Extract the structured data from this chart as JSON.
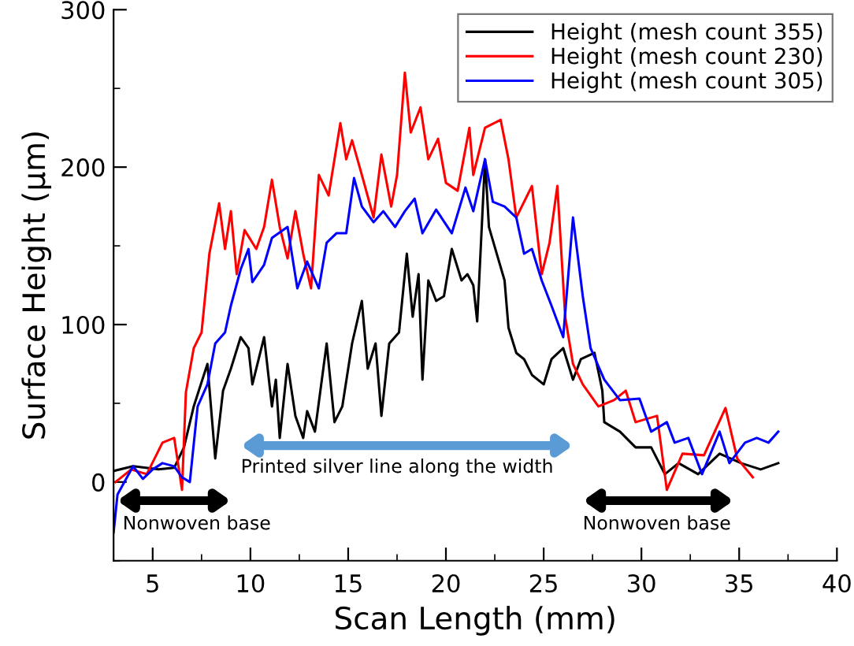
{
  "chart_data": {
    "type": "line",
    "xlabel": "Scan Length (mm)",
    "ylabel": "Surface Height (μm)",
    "xlim": [
      3,
      40
    ],
    "ylim": [
      -50,
      300
    ],
    "xticks": [
      5,
      {
        "value": 7.5,
        "label": null
      },
      10,
      {
        "value": 12.5,
        "label": null
      },
      15,
      {
        "value": 17.5,
        "label": null
      },
      20,
      {
        "value": 22.5,
        "label": null
      },
      25,
      {
        "value": 27.5,
        "label": null
      },
      30,
      {
        "value": 32.5,
        "label": null
      },
      35,
      {
        "value": 37.5,
        "label": null
      },
      40
    ],
    "yticks": [
      {
        "value": -50,
        "label": null
      },
      0,
      {
        "value": 50,
        "label": null
      },
      100,
      {
        "value": 150,
        "label": null
      },
      200,
      {
        "value": 250,
        "label": null
      },
      300
    ],
    "grid": false,
    "legend": "top right",
    "marker": "none",
    "line_style": "solid",
    "series": [
      {
        "name": "Height (mesh count 355)",
        "color": "#000000",
        "x": [
          3.0,
          4.0,
          5.3,
          6.1,
          6.6,
          7.1,
          7.8,
          8.2,
          8.6,
          9.0,
          9.5,
          9.9,
          10.1,
          10.3,
          10.7,
          11.1,
          11.3,
          11.5,
          11.9,
          12.3,
          12.7,
          12.9,
          13.3,
          13.9,
          14.3,
          14.7,
          15.2,
          15.7,
          16.0,
          16.4,
          16.7,
          17.1,
          17.6,
          18.0,
          18.3,
          18.6,
          18.8,
          19.1,
          19.5,
          19.9,
          20.3,
          20.8,
          21.1,
          21.4,
          21.6,
          22.0,
          22.2,
          22.6,
          23.0,
          23.2,
          23.6,
          24.0,
          24.4,
          25.0,
          25.4,
          26.0,
          26.5,
          26.9,
          27.6,
          28.0,
          28.1,
          28.9,
          29.7,
          30.5,
          31.2,
          31.9,
          32.9,
          34.0,
          35.1,
          36.1,
          37.0
        ],
        "values": [
          7,
          10,
          8,
          9,
          22,
          48,
          75,
          15,
          58,
          72,
          92,
          85,
          62,
          72,
          92,
          48,
          65,
          28,
          75,
          42,
          28,
          45,
          32,
          88,
          38,
          48,
          88,
          115,
          72,
          88,
          42,
          88,
          95,
          145,
          105,
          132,
          65,
          128,
          115,
          118,
          148,
          128,
          132,
          125,
          102,
          205,
          162,
          145,
          128,
          98,
          82,
          78,
          68,
          62,
          78,
          85,
          65,
          78,
          82,
          58,
          38,
          32,
          22,
          22,
          5,
          12,
          5,
          18,
          12,
          8,
          12
        ]
      },
      {
        "name": "Height (mesh count 230)",
        "color": "#ff0000",
        "x": [
          3.1,
          3.9,
          4.7,
          5.5,
          6.1,
          6.5,
          6.7,
          7.1,
          7.5,
          7.9,
          8.4,
          8.7,
          9.0,
          9.3,
          9.7,
          10.3,
          10.7,
          11.1,
          11.5,
          11.9,
          12.3,
          12.7,
          13.1,
          13.5,
          14.0,
          14.6,
          14.9,
          15.2,
          15.7,
          16.3,
          16.7,
          17.2,
          17.5,
          17.9,
          18.2,
          18.7,
          19.1,
          19.6,
          20.0,
          20.6,
          21.2,
          21.4,
          22.0,
          22.8,
          23.2,
          23.6,
          24.4,
          24.9,
          25.3,
          25.7,
          26.1,
          26.5,
          27.0,
          27.8,
          28.6,
          29.2,
          29.7,
          30.8,
          31.3,
          32.1,
          33.2,
          34.3,
          34.9,
          35.7
        ],
        "values": [
          0,
          8,
          5,
          25,
          28,
          -5,
          57,
          85,
          95,
          145,
          177,
          148,
          172,
          132,
          160,
          148,
          162,
          192,
          162,
          142,
          172,
          145,
          123,
          195,
          182,
          228,
          205,
          217,
          195,
          168,
          208,
          175,
          195,
          260,
          222,
          238,
          205,
          218,
          190,
          185,
          225,
          195,
          225,
          230,
          205,
          168,
          188,
          132,
          152,
          188,
          105,
          75,
          62,
          48,
          52,
          58,
          38,
          42,
          -5,
          18,
          17,
          47,
          15,
          3
        ]
      },
      {
        "name": "Height (mesh count 305)",
        "color": "#0000ff",
        "x": [
          3.0,
          3.2,
          4.0,
          4.5,
          5.0,
          5.5,
          6.1,
          6.5,
          6.9,
          7.3,
          7.8,
          8.2,
          8.7,
          9.0,
          9.5,
          9.9,
          10.1,
          10.7,
          11.1,
          11.9,
          12.4,
          12.9,
          13.5,
          13.9,
          14.4,
          14.9,
          15.3,
          15.7,
          16.3,
          16.8,
          17.4,
          17.9,
          18.4,
          18.8,
          19.5,
          20.3,
          21.0,
          21.4,
          22.0,
          22.4,
          23.0,
          23.6,
          24.0,
          24.4,
          24.9,
          25.4,
          26.0,
          26.5,
          27.0,
          27.4,
          28.1,
          28.9,
          29.9,
          30.5,
          31.3,
          31.7,
          32.4,
          33.1,
          34.0,
          34.5,
          35.3,
          35.9,
          36.5,
          37.0
        ],
        "values": [
          -32,
          -8,
          10,
          2,
          8,
          12,
          10,
          3,
          0,
          48,
          62,
          88,
          95,
          112,
          135,
          148,
          127,
          138,
          155,
          162,
          123,
          140,
          123,
          152,
          158,
          158,
          193,
          175,
          165,
          172,
          162,
          172,
          180,
          158,
          173,
          158,
          187,
          172,
          205,
          178,
          175,
          168,
          145,
          148,
          128,
          112,
          92,
          168,
          118,
          85,
          65,
          52,
          53,
          32,
          38,
          25,
          28,
          5,
          32,
          12,
          25,
          28,
          25,
          32
        ]
      }
    ],
    "annotations": [
      "Printed silver line along the width",
      "Nonwoven base",
      "Nonwoven base"
    ]
  }
}
